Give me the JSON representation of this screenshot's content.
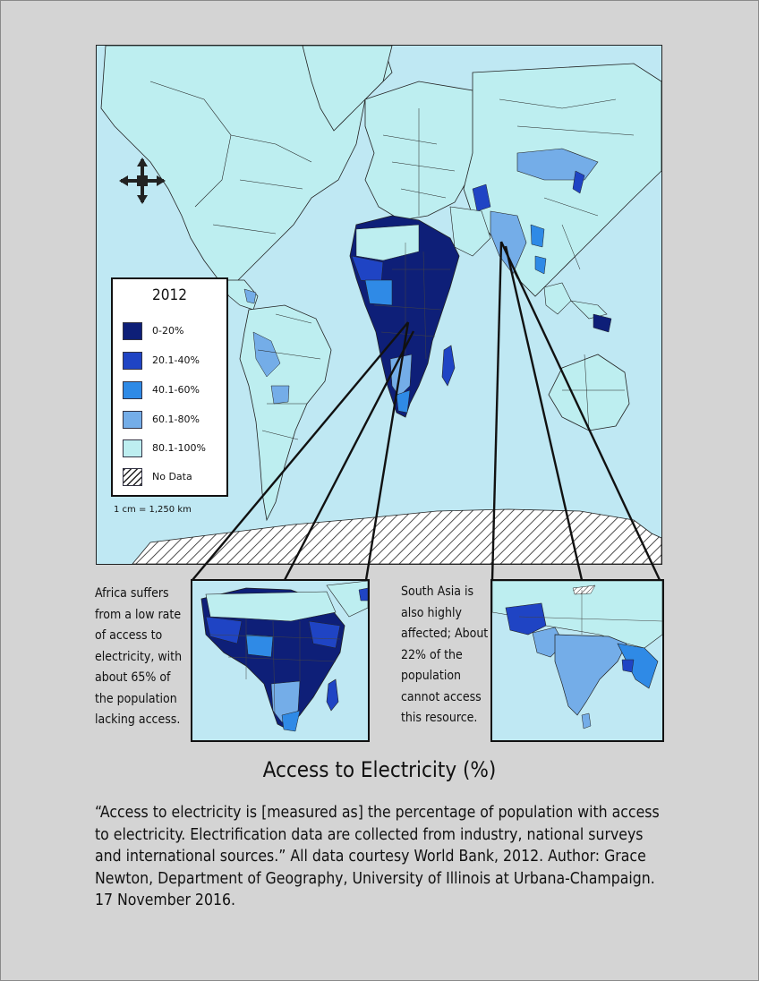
{
  "legend": {
    "title": "2012",
    "items": [
      {
        "label": "0-20%",
        "color": "#0e1f78"
      },
      {
        "label": "20.1-40%",
        "color": "#1f44c4"
      },
      {
        "label": "40.1-60%",
        "color": "#2f8ae6"
      },
      {
        "label": "60.1-80%",
        "color": "#74ade8"
      },
      {
        "label": "80.1-100%",
        "color": "#bdeef0"
      },
      {
        "label": "No Data",
        "color": "hatched"
      }
    ]
  },
  "scale": "1 cm = 1,250 km",
  "captions": {
    "africa": "Africa suffers from a low rate of access to electricity, with about 65% of the population lacking access.",
    "south_asia": "South Asia is also highly affected; About 22% of the population cannot access this resource."
  },
  "title": "Access to Electricity (%)",
  "description": "“Access to electricity is [measured as] the percentage of population with access to electricity. Electrification data are collected from industry, national surveys and international sources.” All data courtesy World Bank, 2012. Author: Grace Newton, Department of Geography, University of Illinois at Urbana-Champaign. 17 November 2016.",
  "colors": {
    "ocean": "#bfe8f3",
    "land_high": "#bdeef0",
    "land_60_80": "#74ade8",
    "land_40_60": "#2f8ae6",
    "land_20_40": "#1f44c4",
    "land_0_20": "#0e1f78",
    "background": "#d4d4d4"
  },
  "icons": [
    "compass-rose-icon"
  ]
}
